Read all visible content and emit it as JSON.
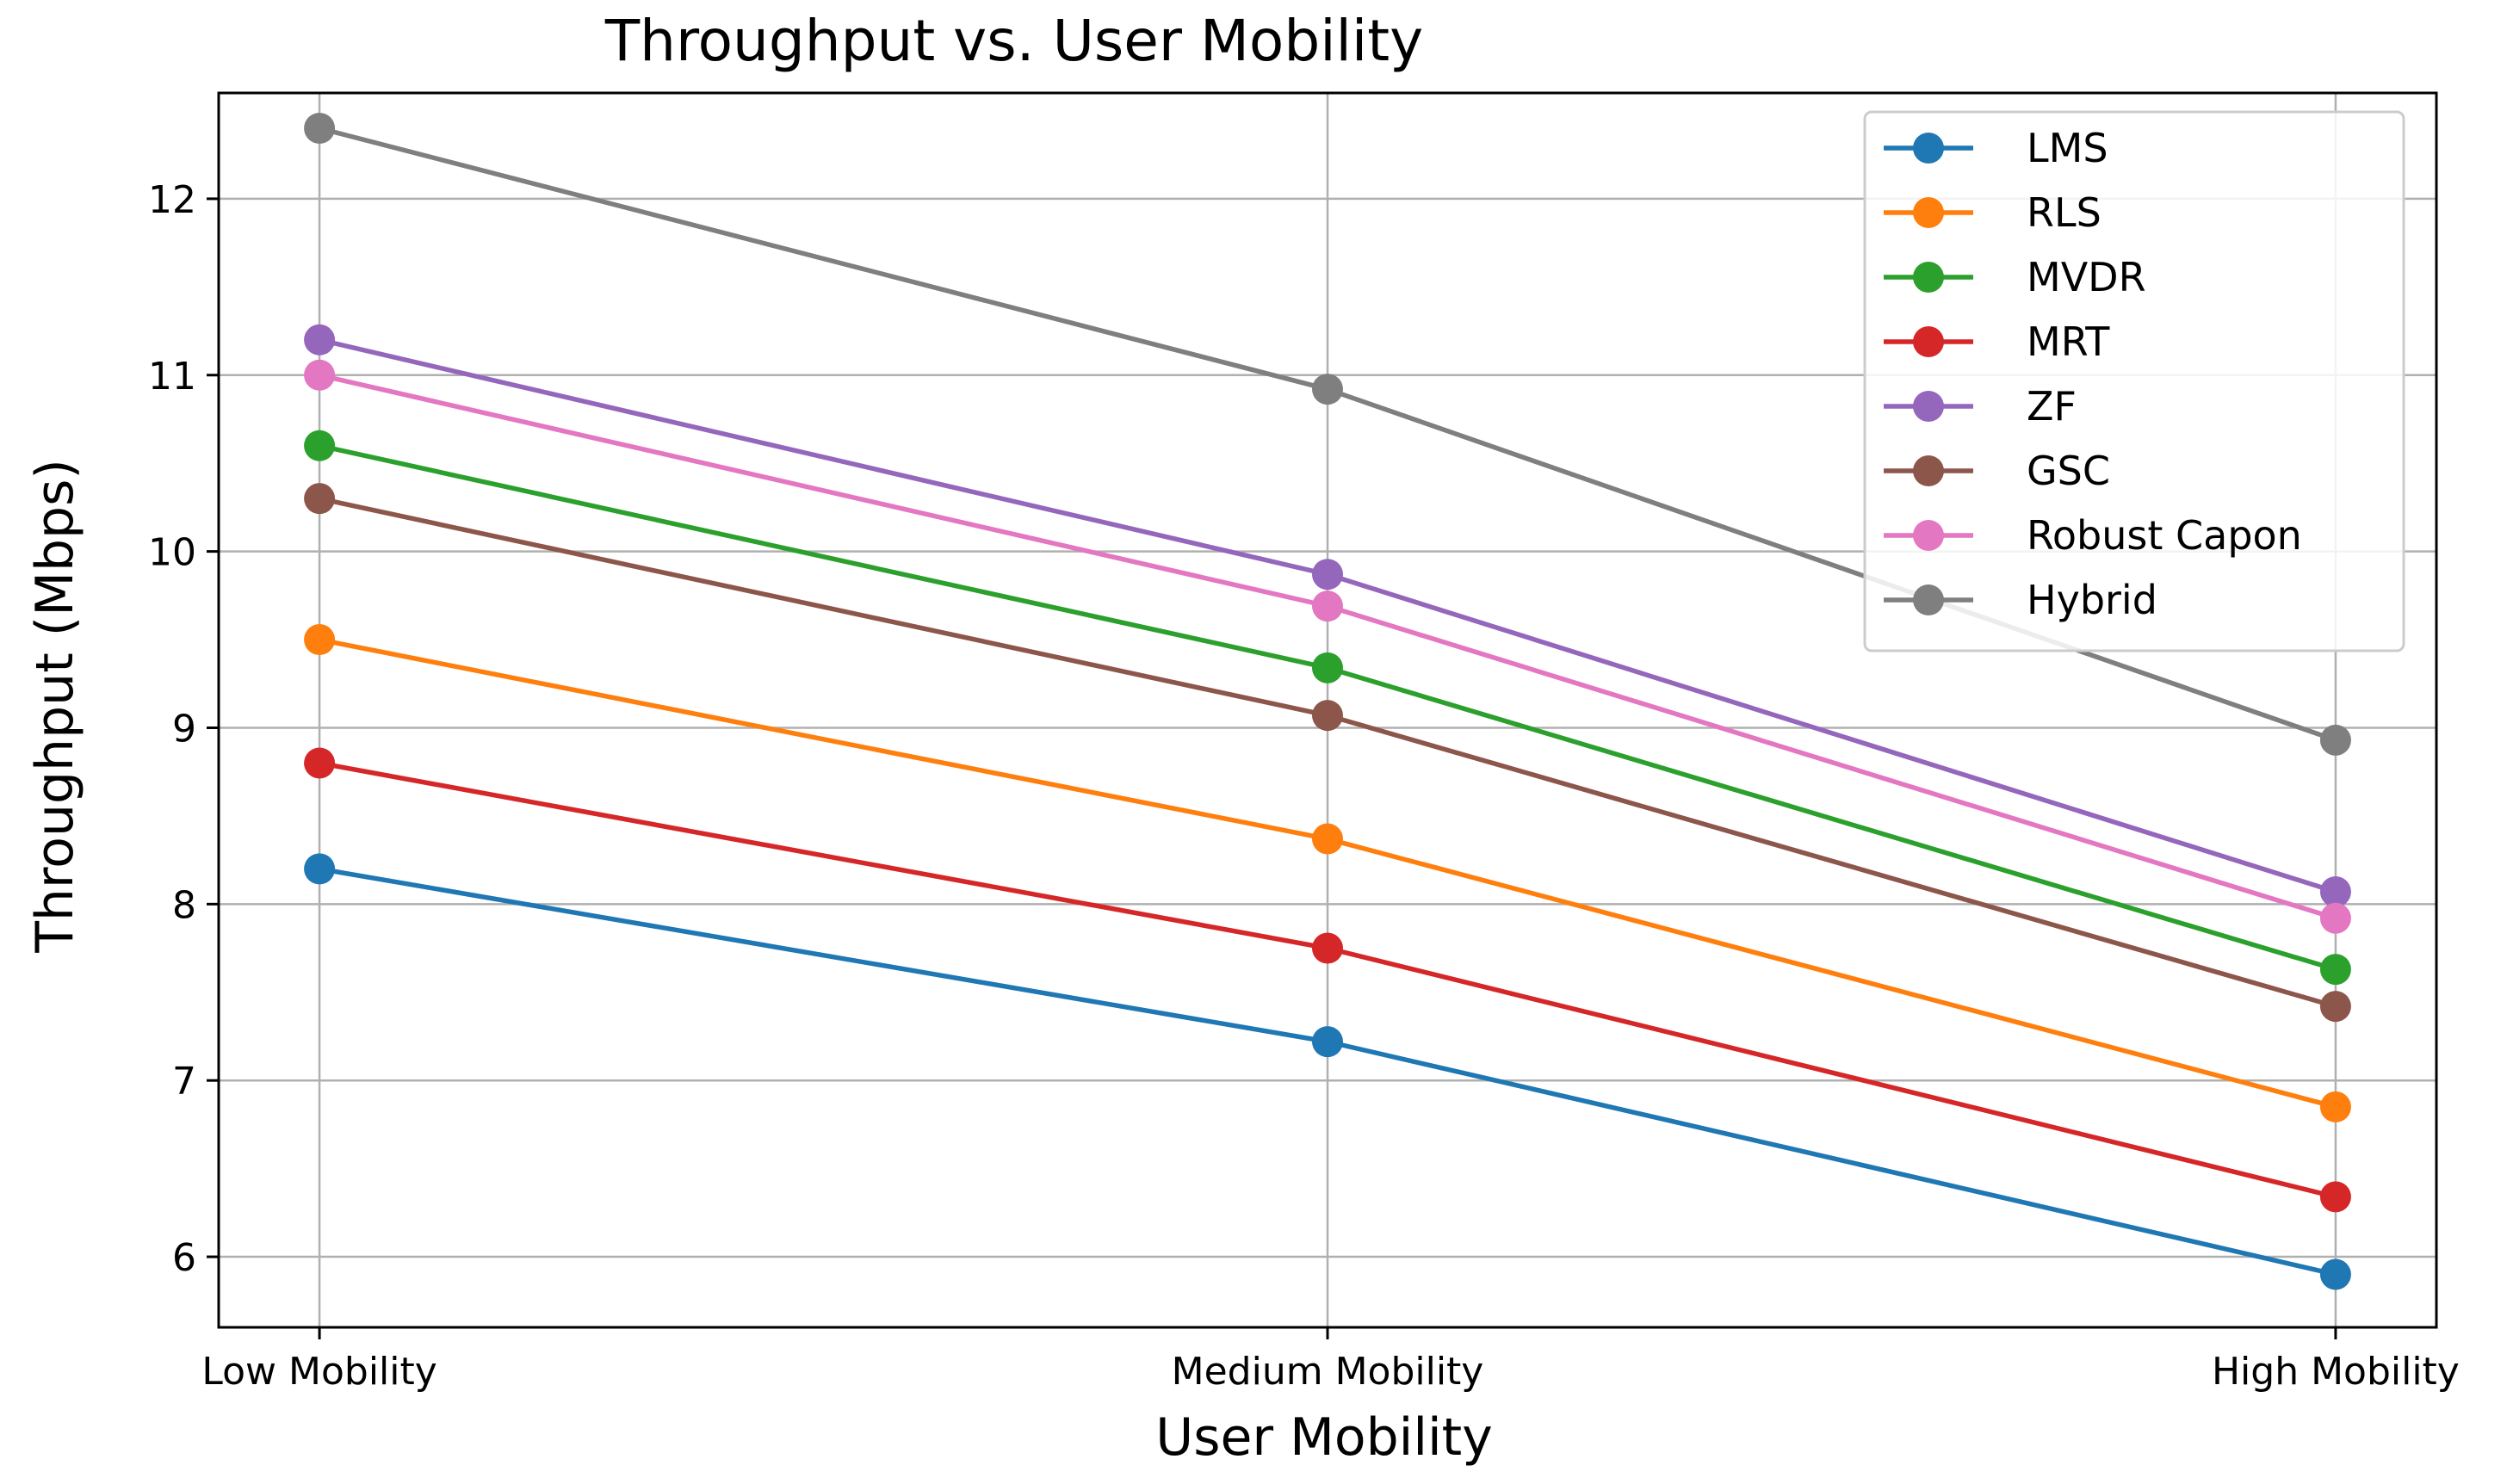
{
  "chart_data": {
    "type": "line",
    "title": "Throughput vs. User Mobility",
    "xlabel": "User Mobility",
    "ylabel": "Throughput (Mbps)",
    "categories": [
      "Low Mobility",
      "Medium Mobility",
      "High Mobility"
    ],
    "ylim": [
      5.6,
      12.6
    ],
    "yticks": [
      6,
      7,
      8,
      9,
      10,
      11,
      12
    ],
    "grid": true,
    "legend_position": "top-right",
    "series": [
      {
        "name": "LMS",
        "color": "#1f77b4",
        "values": [
          8.2,
          7.22,
          5.9
        ]
      },
      {
        "name": "RLS",
        "color": "#ff7f0e",
        "values": [
          9.5,
          8.37,
          6.85
        ]
      },
      {
        "name": "MVDR",
        "color": "#2ca02c",
        "values": [
          10.6,
          9.34,
          7.63
        ]
      },
      {
        "name": "MRT",
        "color": "#d62728",
        "values": [
          8.8,
          7.75,
          6.34
        ]
      },
      {
        "name": "ZF",
        "color": "#9467bd",
        "values": [
          11.2,
          9.87,
          8.07
        ]
      },
      {
        "name": "GSC",
        "color": "#8c564b",
        "values": [
          10.3,
          9.07,
          7.42
        ]
      },
      {
        "name": "Robust Capon",
        "color": "#e377c2",
        "values": [
          11.0,
          9.69,
          7.92
        ]
      },
      {
        "name": "Hybrid",
        "color": "#7f7f7f",
        "values": [
          12.4,
          10.92,
          8.93
        ]
      }
    ]
  }
}
